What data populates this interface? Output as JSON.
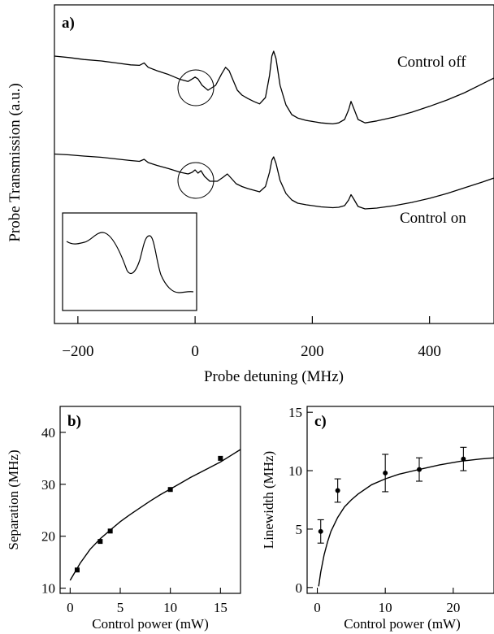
{
  "chart_data": [
    {
      "panel": "a)",
      "type": "line",
      "xlabel": "Probe detuning (MHz)",
      "ylabel": "Probe Transmission (a.u.)",
      "xlim": [
        -240,
        510
      ],
      "xticks": [
        "−200",
        "0",
        "200",
        "400"
      ],
      "xtick_values": [
        -200,
        0,
        200,
        400
      ],
      "series": [
        {
          "name": "Control off",
          "color": "#000000",
          "x": [
            -240,
            -215,
            -190,
            -160,
            -135,
            -110,
            -95,
            -87,
            -80,
            -65,
            -45,
            -25,
            -12,
            -5,
            0,
            5,
            12,
            22,
            35,
            45,
            52,
            58,
            65,
            72,
            80,
            90,
            100,
            110,
            120,
            127,
            131,
            134,
            138,
            145,
            155,
            165,
            175,
            190,
            205,
            215,
            225,
            235,
            245,
            255,
            262,
            266,
            270,
            278,
            290,
            310,
            340,
            370,
            400,
            430,
            460,
            490,
            510
          ],
          "y": [
            0.85,
            0.82,
            0.78,
            0.75,
            0.71,
            0.67,
            0.66,
            0.71,
            0.62,
            0.55,
            0.47,
            0.37,
            0.33,
            0.38,
            0.42,
            0.38,
            0.25,
            0.15,
            0.25,
            0.48,
            0.62,
            0.55,
            0.35,
            0.15,
            0.05,
            -0.02,
            -0.08,
            -0.13,
            0.0,
            0.45,
            0.85,
            0.95,
            0.8,
            0.25,
            -0.15,
            -0.35,
            -0.42,
            -0.47,
            -0.5,
            -0.52,
            -0.53,
            -0.54,
            -0.52,
            -0.45,
            -0.25,
            -0.08,
            -0.2,
            -0.45,
            -0.52,
            -0.48,
            -0.4,
            -0.3,
            -0.18,
            -0.05,
            0.1,
            0.28,
            0.4
          ]
        },
        {
          "name": "Control on",
          "color": "#000000",
          "x": [
            -240,
            -215,
            -190,
            -160,
            -135,
            -110,
            -95,
            -87,
            -80,
            -65,
            -45,
            -25,
            -12,
            -5,
            0,
            5,
            10,
            16,
            25,
            38,
            48,
            55,
            62,
            70,
            80,
            90,
            100,
            110,
            120,
            127,
            131,
            134,
            138,
            145,
            155,
            165,
            175,
            190,
            205,
            215,
            225,
            235,
            245,
            255,
            262,
            266,
            270,
            278,
            290,
            310,
            340,
            370,
            400,
            430,
            460,
            490,
            510
          ],
          "y": [
            0.85,
            0.83,
            0.8,
            0.77,
            0.73,
            0.69,
            0.67,
            0.72,
            0.64,
            0.57,
            0.49,
            0.4,
            0.36,
            0.4,
            0.46,
            0.38,
            0.44,
            0.3,
            0.18,
            0.18,
            0.28,
            0.36,
            0.25,
            0.12,
            0.05,
            0.0,
            -0.04,
            -0.08,
            0.05,
            0.4,
            0.7,
            0.78,
            0.62,
            0.2,
            -0.12,
            -0.28,
            -0.36,
            -0.4,
            -0.43,
            -0.45,
            -0.46,
            -0.47,
            -0.46,
            -0.42,
            -0.28,
            -0.15,
            -0.24,
            -0.44,
            -0.5,
            -0.48,
            -0.42,
            -0.34,
            -0.24,
            -0.12,
            0.02,
            0.16,
            0.26
          ]
        }
      ],
      "annotations": [
        "Control off",
        "Control on"
      ]
    },
    {
      "panel": "b)",
      "type": "scatter",
      "xlabel": "Control power (mW)",
      "ylabel": "Separation (MHz)",
      "xlim": [
        -1,
        17
      ],
      "ylim": [
        9,
        45
      ],
      "xticks": [
        0,
        5,
        10,
        15
      ],
      "yticks": [
        10,
        20,
        30,
        40
      ],
      "points": {
        "x": [
          0.7,
          3.0,
          4.0,
          10.0,
          15.0
        ],
        "y": [
          13.5,
          19.0,
          21.0,
          29.0,
          35.0
        ]
      },
      "fit": {
        "x": [
          0.0,
          1.0,
          2.0,
          3.0,
          4.0,
          5.0,
          6.0,
          7.0,
          8.0,
          9.0,
          10.0,
          11.0,
          12.0,
          13.0,
          14.0,
          15.0,
          16.0,
          17.0
        ],
        "y": [
          11.5,
          14.8,
          17.5,
          19.5,
          21.2,
          22.8,
          24.2,
          25.5,
          26.8,
          28.0,
          29.1,
          30.2,
          31.3,
          32.3,
          33.3,
          34.3,
          35.5,
          36.7
        ]
      }
    },
    {
      "panel": "c)",
      "type": "scatter",
      "xlabel": "Control power (mW)",
      "ylabel": "Linewidth (MHz)",
      "xlim": [
        -1.5,
        26
      ],
      "ylim": [
        -0.5,
        15.5
      ],
      "xticks": [
        0,
        10,
        20
      ],
      "yticks": [
        0,
        5,
        10,
        15
      ],
      "points": {
        "x": [
          0.5,
          3.0,
          10.0,
          15.0,
          21.5
        ],
        "y": [
          4.8,
          8.3,
          9.8,
          10.1,
          11.0
        ],
        "err": [
          1.0,
          1.0,
          1.6,
          1.0,
          1.0
        ]
      },
      "fit": {
        "x": [
          0.2,
          0.5,
          1.0,
          1.5,
          2.0,
          3.0,
          4.0,
          5.0,
          6.0,
          8.0,
          10.0,
          12.0,
          15.0,
          18.0,
          21.0,
          24.0,
          26.0
        ],
        "y": [
          0.1,
          1.3,
          2.8,
          3.9,
          4.8,
          6.0,
          6.9,
          7.5,
          8.0,
          8.8,
          9.3,
          9.7,
          10.1,
          10.5,
          10.8,
          11.0,
          11.1
        ]
      }
    }
  ]
}
